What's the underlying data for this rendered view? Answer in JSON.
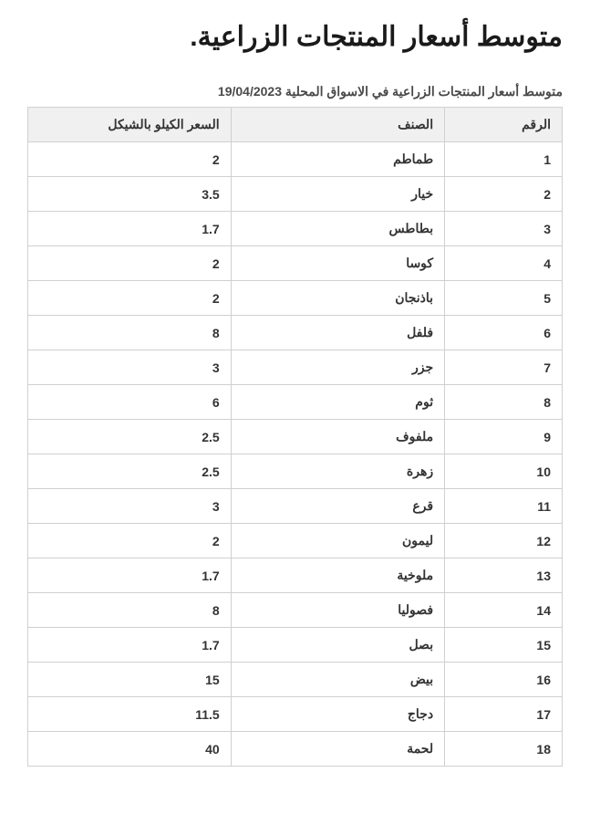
{
  "title": "متوسط أسعار المنتجات الزراعية.",
  "subtitle": "متوسط أسعار المنتجات الزراعية في الاسواق المحلية 19/04/2023",
  "table": {
    "columns": [
      "الرقم",
      "الصنف",
      "السعر الكيلو بالشيكل"
    ],
    "rows": [
      [
        "1",
        "طماطم",
        "2"
      ],
      [
        "2",
        "خيار",
        "3.5"
      ],
      [
        "3",
        "بطاطس",
        "1.7"
      ],
      [
        "4",
        "كوسا",
        "2"
      ],
      [
        "5",
        "باذنجان",
        "2"
      ],
      [
        "6",
        "فلفل",
        "8"
      ],
      [
        "7",
        "جزر",
        "3"
      ],
      [
        "8",
        "ثوم",
        "6"
      ],
      [
        "9",
        "ملفوف",
        "2.5"
      ],
      [
        "10",
        "زهرة",
        "2.5"
      ],
      [
        "11",
        "قرع",
        "3"
      ],
      [
        "12",
        "ليمون",
        "2"
      ],
      [
        "13",
        "ملوخية",
        "1.7"
      ],
      [
        "14",
        "فصوليا",
        "8"
      ],
      [
        "15",
        "بصل",
        "1.7"
      ],
      [
        "16",
        "بيض",
        "15"
      ],
      [
        "17",
        "دجاج",
        "11.5"
      ],
      [
        "18",
        "لحمة",
        "40"
      ]
    ],
    "header_bg": "#f0f0f0",
    "cell_bg": "#ffffff",
    "border_color": "#d0d0d0",
    "text_color": "#333333",
    "font_size": 14
  }
}
